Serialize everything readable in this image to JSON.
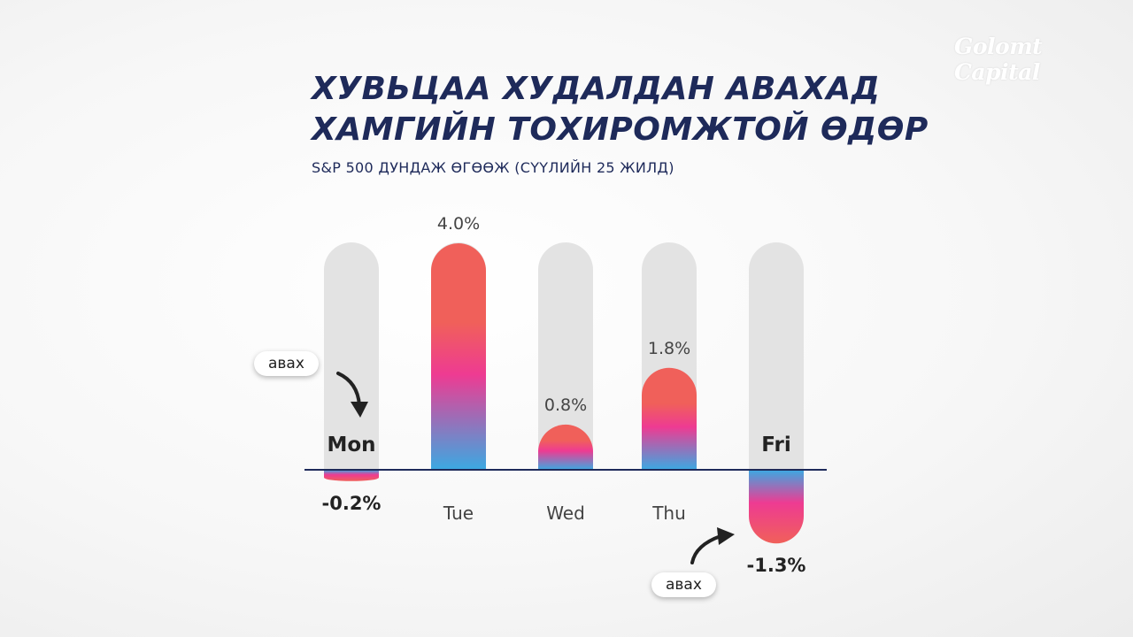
{
  "brand": {
    "logo_text": "Golomt Capital"
  },
  "title_lines": [
    "ХУВЬЦАА ХУДАЛДАН АВАХАД",
    "ХАМГИЙН ТОХИРОМЖТОЙ ӨДӨР"
  ],
  "subtitle": "S&P 500 ДУНДАЖ ӨГӨӨЖ (СҮҮЛИЙН 25 ЖИЛД)",
  "annotations": {
    "buy_label": "авах",
    "buy_label_2": "авах"
  },
  "colors": {
    "bar_top": "#f0605a",
    "bar_mid": "#ee3b92",
    "bar_bottom": "#3ba9e2",
    "track": "#e3e3e3",
    "axis": "#1e2a5a"
  },
  "chart_data": {
    "type": "bar",
    "title": "S&P 500 ДУНДАЖ ӨГӨӨЖ (СҮҮЛИЙН 25 ЖИЛД)",
    "categories": [
      "Mon",
      "Tue",
      "Wed",
      "Thu",
      "Fri"
    ],
    "values": [
      -0.2,
      4.0,
      0.8,
      1.8,
      -1.3
    ],
    "value_labels": [
      "-0.2%",
      "4.0%",
      "0.8%",
      "1.8%",
      "-1.3%"
    ],
    "unit": "%",
    "highlighted": [
      "Mon",
      "Fri"
    ],
    "ylim": [
      -1.3,
      4.0
    ],
    "grid": false,
    "legend": "none"
  }
}
